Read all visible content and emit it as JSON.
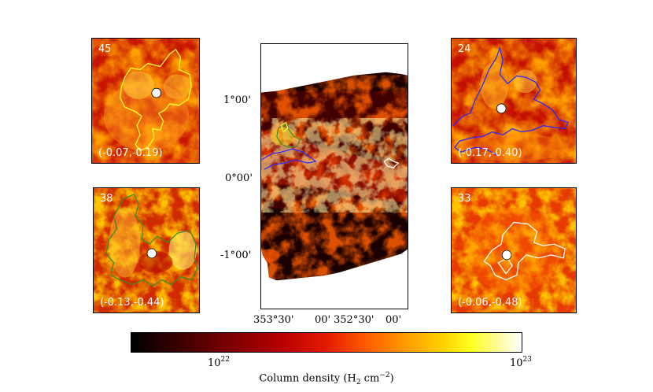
{
  "panels": [
    {
      "id": "45",
      "coord": "(-0.07,-0.19)",
      "contour_color": "#ffff33"
    },
    {
      "id": "24",
      "coord": "(-0.17,-0.40)",
      "contour_color": "#2a2aff"
    },
    {
      "id": "38",
      "coord": "(-0.13,-0.44)",
      "contour_color": "#3e8a2a"
    },
    {
      "id": "33",
      "coord": "(-0.06,-0.48)",
      "contour_color": "#ffffff"
    }
  ],
  "main_map": {
    "y_ticks": [
      "1°00'",
      "0°00'",
      "-1°00'"
    ],
    "x_ticks": [
      "353°30'",
      "00'",
      "352°30'",
      "00'"
    ]
  },
  "colorbar": {
    "min_label_base": "10",
    "min_label_exp": "22",
    "max_label_base": "10",
    "max_label_exp": "23",
    "label_prefix": "Column density (H",
    "label_sub": "2",
    "label_mid": " cm",
    "label_sup": "−2",
    "label_suffix": ")"
  }
}
